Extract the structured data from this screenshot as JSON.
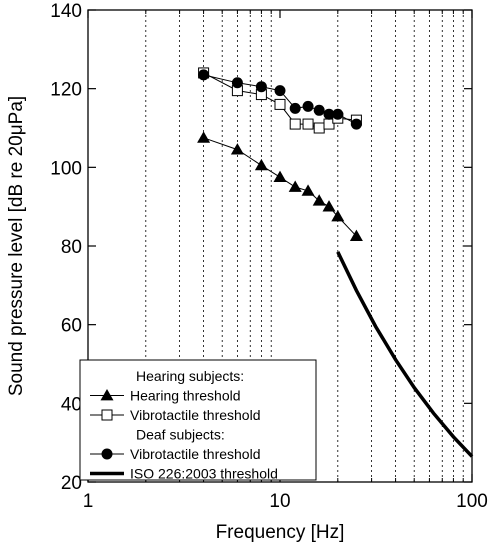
{
  "chart_data": {
    "type": "line",
    "xlabel": "Frequency [Hz]",
    "ylabel": "Sound pressure level [dB re 20μPa]",
    "x_scale": "log",
    "xlim": [
      1,
      100
    ],
    "ylim": [
      20,
      140
    ],
    "x_ticks": [
      1,
      10,
      100
    ],
    "x_tick_labels": [
      "1",
      "10",
      "100"
    ],
    "y_ticks": [
      20,
      40,
      60,
      80,
      100,
      120,
      140
    ],
    "y_tick_labels": [
      "20",
      "40",
      "60",
      "80",
      "100",
      "120",
      "140"
    ],
    "grid": "vertical minor gridlines (dotted)",
    "legend_position": "bottom-left",
    "legend": [
      {
        "kind": "header",
        "text": "Hearing subjects:"
      },
      {
        "kind": "entry",
        "text": "Hearing threshold",
        "series": 0
      },
      {
        "kind": "entry",
        "text": "Vibrotactile threshold",
        "series": 1
      },
      {
        "kind": "header",
        "text": "Deaf subjects:"
      },
      {
        "kind": "entry",
        "text": "Vibrotactile threshold",
        "series": 2
      },
      {
        "kind": "entry",
        "text": "ISO 226:2003 threshold",
        "series": 3
      }
    ],
    "series": [
      {
        "name": "Hearing threshold",
        "marker": "filled-triangle",
        "color": "#000000",
        "x": [
          4,
          6,
          8,
          10,
          12,
          14,
          16,
          18,
          20,
          25
        ],
        "y": [
          107.5,
          104.5,
          100.5,
          97.5,
          95,
          94,
          91.5,
          90,
          87.5,
          82.5
        ]
      },
      {
        "name": "Vibrotactile threshold",
        "marker": "open-square",
        "color": "#000000",
        "x": [
          4,
          6,
          8,
          10,
          12,
          14,
          16,
          18,
          20,
          25
        ],
        "y": [
          124,
          119.5,
          118.5,
          116,
          111,
          111,
          110,
          111,
          112.5,
          112
        ]
      },
      {
        "name": "Vibrotactile threshold",
        "marker": "filled-circle",
        "color": "#000000",
        "x": [
          4,
          6,
          8,
          10,
          12,
          14,
          16,
          18,
          20,
          25
        ],
        "y": [
          123.5,
          121.5,
          120.5,
          119.5,
          115,
          115.5,
          114.5,
          113.5,
          113.5,
          111
        ]
      },
      {
        "name": "ISO 226:2003 threshold",
        "marker": "none",
        "line": "thick",
        "color": "#000000",
        "x": [
          20,
          25,
          31.5,
          40,
          50,
          63,
          80,
          100
        ],
        "y": [
          78.5,
          68.7,
          59.5,
          51.1,
          44,
          37.5,
          31.5,
          26.5
        ]
      }
    ]
  }
}
